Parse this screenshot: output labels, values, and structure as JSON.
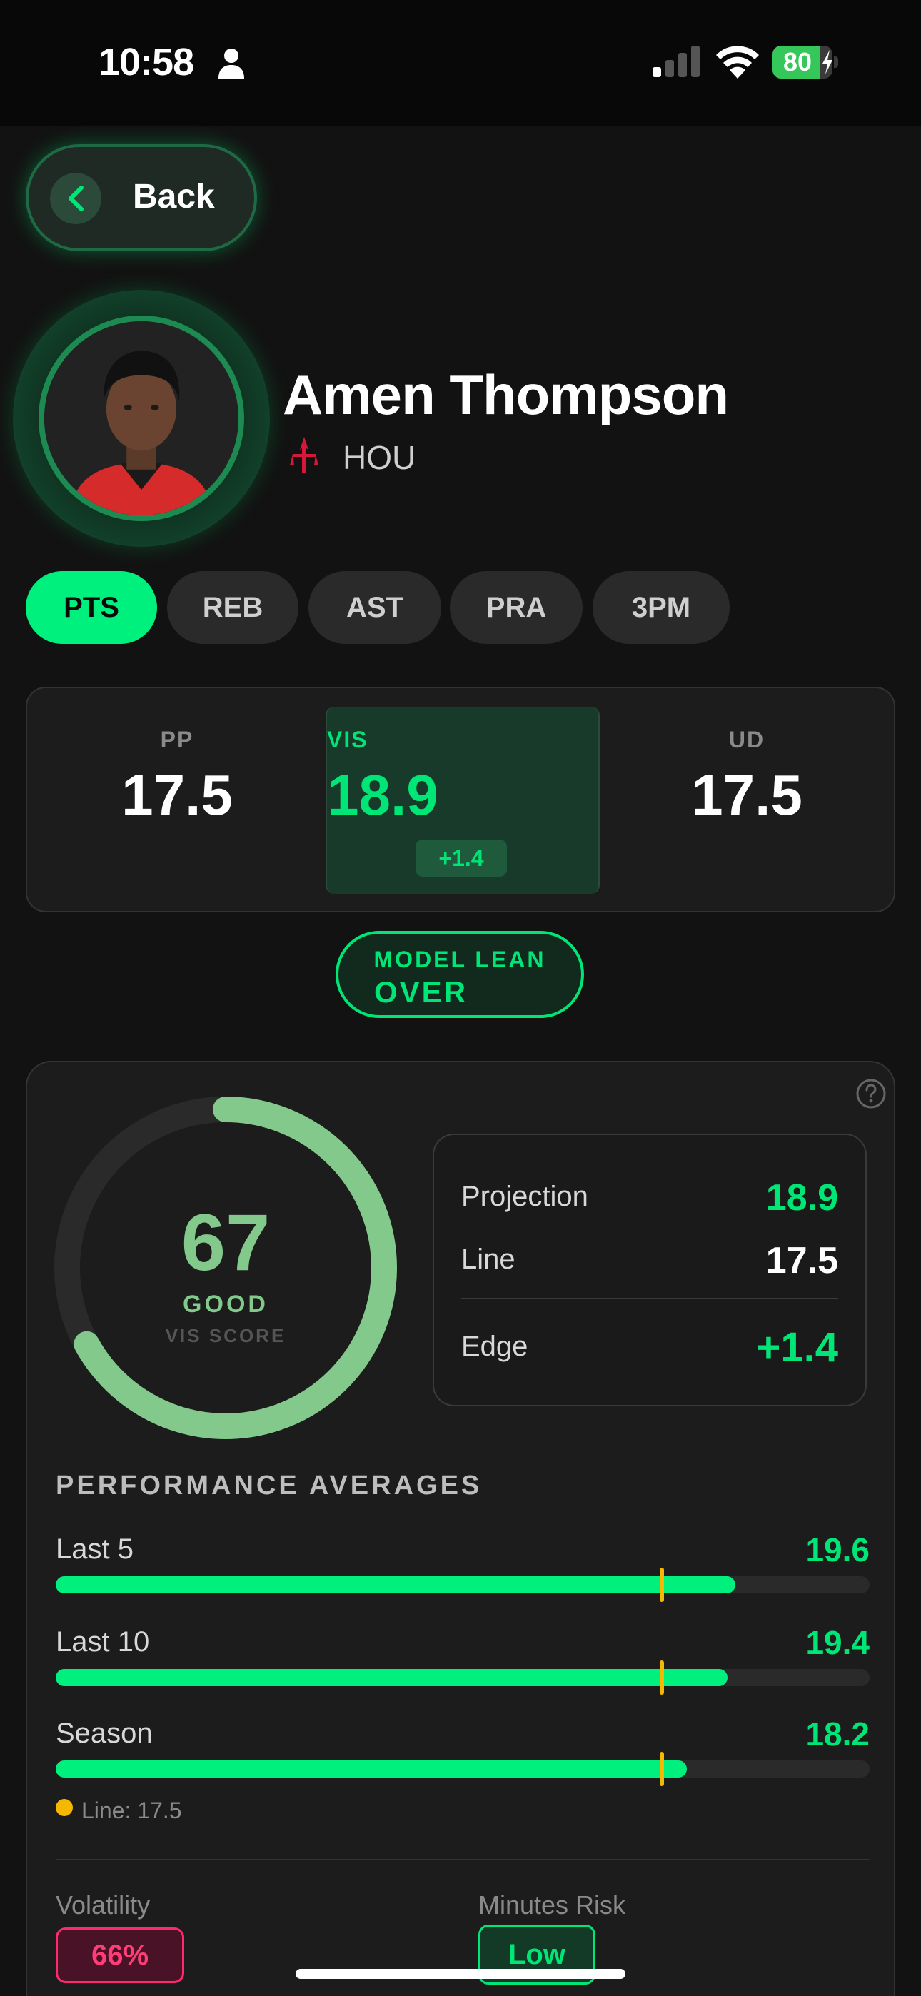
{
  "status_bar": {
    "time": "10:58",
    "battery": "80",
    "battery_level": 0.8
  },
  "header": {
    "back_label": "Back"
  },
  "player": {
    "name": "Amen Thompson",
    "team": "HOU"
  },
  "tabs": [
    {
      "label": "PTS",
      "active": true
    },
    {
      "label": "REB",
      "active": false
    },
    {
      "label": "AST",
      "active": false
    },
    {
      "label": "PRA",
      "active": false
    },
    {
      "label": "3PM",
      "active": false
    }
  ],
  "lines": {
    "pp": {
      "label": "PP",
      "value": "17.5"
    },
    "vis": {
      "label": "VIS",
      "value": "18.9",
      "delta": "+1.4"
    },
    "ud": {
      "label": "UD",
      "value": "17.5"
    }
  },
  "model_lean": {
    "label": "MODEL LEAN",
    "value": "OVER"
  },
  "vis_score": {
    "score": "67",
    "score_value": 67,
    "rating": "GOOD",
    "caption": "VIS SCORE"
  },
  "summary": {
    "projection": {
      "label": "Projection",
      "value": "18.9"
    },
    "line": {
      "label": "Line",
      "value": "17.5"
    },
    "edge": {
      "label": "Edge",
      "value": "+1.4"
    }
  },
  "performance": {
    "title": "PERFORMANCE AVERAGES",
    "rows": [
      {
        "label": "Last 5",
        "value": "19.6"
      },
      {
        "label": "Last 10",
        "value": "19.4"
      },
      {
        "label": "Season",
        "value": "18.2"
      }
    ],
    "bar_fractions": [
      0.835,
      0.825,
      0.775
    ],
    "line_fraction": 0.745,
    "legend": "Line: 17.5"
  },
  "metrics": {
    "volatility": {
      "label": "Volatility",
      "value": "66%"
    },
    "minutes_risk": {
      "label": "Minutes Risk",
      "value": "Low"
    }
  },
  "colors": {
    "accent": "#00e676",
    "tab_active": "#00f07e",
    "score": "#82c98b",
    "line_marker": "#f5b800",
    "danger": "#ff2a6d"
  }
}
